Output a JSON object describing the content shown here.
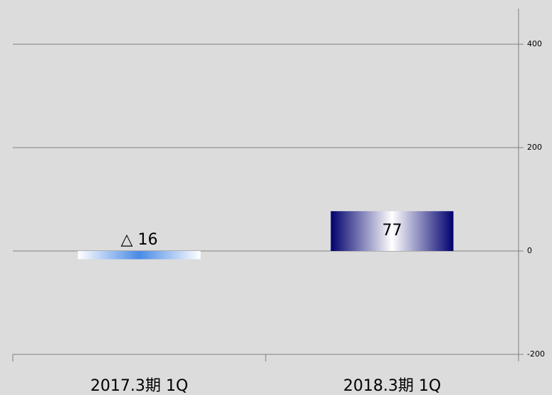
{
  "chart_data": {
    "type": "bar",
    "categories": [
      "2017.3期 1Q",
      "2018.3期 1Q"
    ],
    "values": [
      -16,
      77
    ],
    "value_labels": [
      "△ 16",
      "77"
    ],
    "colors": [
      "#4a8ae6",
      "#00006e"
    ],
    "ylim": [
      -200,
      469
    ],
    "yticks": [
      -200,
      0,
      200,
      400
    ],
    "grid": true,
    "y_axis_side": "right"
  }
}
